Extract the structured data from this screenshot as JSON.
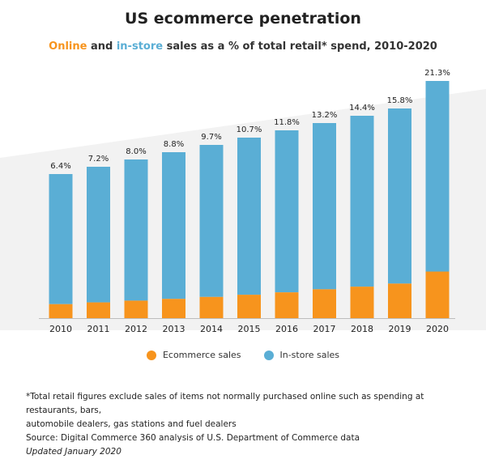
{
  "title": "US ecommerce penetration",
  "subtitle": {
    "online": "Online",
    "and": "and",
    "instore": "in-store",
    "rest": "sales as a % of total retail* spend, 2010-2020"
  },
  "colors": {
    "ecommerce": "#f7941d",
    "instore": "#5aaed5",
    "background_band": "#f2f2f2"
  },
  "legend": {
    "ecommerce": "Ecommerce sales",
    "instore": "In-store sales"
  },
  "footnote": {
    "line1": "*Total retail figures exclude sales of items not normally purchased online such as spending at restaurants, bars,",
    "line2": "automobile dealers, gas stations and fuel dealers",
    "source": "Source: Digital Commerce 360 analysis of U.S. Department of Commerce data",
    "updated": "Updated January 2020"
  },
  "chart_data": {
    "type": "bar",
    "stacked": true,
    "title": "US ecommerce penetration",
    "categories": [
      "2010",
      "2011",
      "2012",
      "2013",
      "2014",
      "2015",
      "2016",
      "2017",
      "2018",
      "2019",
      "2020"
    ],
    "series": [
      {
        "name": "Ecommerce sales",
        "values": [
          6.4,
          7.2,
          8.0,
          8.8,
          9.7,
          10.7,
          11.8,
          13.2,
          14.4,
          15.8,
          21.3
        ]
      },
      {
        "name": "In-store sales",
        "values": [
          93.6,
          92.8,
          92.0,
          91.2,
          90.3,
          89.3,
          88.2,
          86.8,
          85.6,
          84.2,
          78.7
        ]
      }
    ],
    "labels": [
      "6.4%",
      "7.2%",
      "8.0%",
      "8.8%",
      "9.7%",
      "10.7%",
      "11.8%",
      "13.2%",
      "14.4%",
      "15.8%",
      "21.3%"
    ],
    "xlabel": "",
    "ylabel": "",
    "legend": "bottom-center"
  }
}
